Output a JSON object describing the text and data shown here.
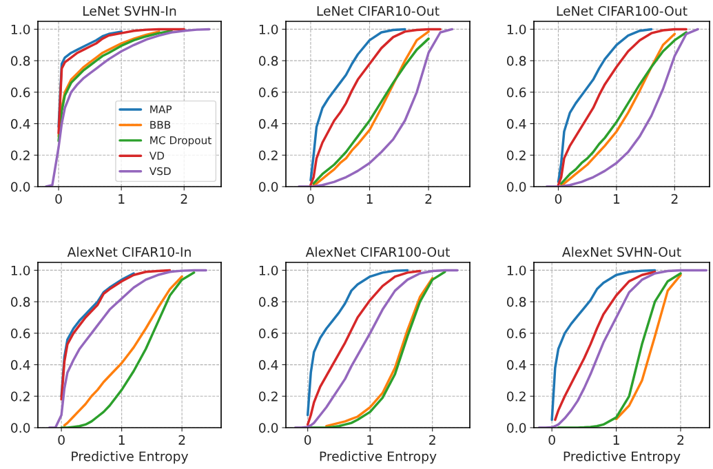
{
  "chart_data": [
    {
      "type": "line",
      "title": "LeNet SVHN-In",
      "x": [
        -0.2,
        -0.1,
        0,
        0.05,
        0.1,
        0.2,
        0.3,
        0.4,
        0.5,
        0.6,
        0.7,
        0.8,
        1.0,
        1.2,
        1.4,
        1.6,
        1.8,
        2.0,
        2.2,
        2.4
      ],
      "xlim": [
        -0.33,
        2.59
      ],
      "xticks": [
        0,
        1,
        2
      ],
      "ylim": [
        0,
        1.05
      ],
      "yticks": [
        {
          "value": 0,
          "label": "0.0"
        },
        {
          "value": 0.2,
          "label": "0.2"
        },
        {
          "value": 0.4,
          "label": "0.4"
        },
        {
          "value": 0.6,
          "label": "0.6"
        },
        {
          "value": 0.8,
          "label": "0.8"
        },
        {
          "value": 1,
          "label": "1.0"
        }
      ],
      "grid": true,
      "legend": "lower right",
      "line_style": "solid",
      "marker": "none",
      "series": [
        {
          "name": "MAP",
          "color": "#1f77b4",
          "values": [
            null,
            null,
            0.38,
            0.78,
            0.82,
            0.85,
            0.87,
            0.89,
            0.91,
            0.93,
            0.955,
            0.97,
            0.985,
            null,
            null,
            null,
            null,
            null,
            null,
            null
          ]
        },
        {
          "name": "BBB",
          "color": "#ff7f0e",
          "values": [
            null,
            null,
            0.32,
            0.5,
            0.6,
            0.68,
            0.72,
            0.76,
            0.79,
            0.82,
            0.85,
            0.87,
            0.91,
            0.94,
            0.965,
            0.985,
            null,
            null,
            null,
            null
          ]
        },
        {
          "name": "MC Dropout",
          "color": "#2ca02c",
          "values": [
            null,
            null,
            0.29,
            0.48,
            0.58,
            0.66,
            0.7,
            0.74,
            0.77,
            0.8,
            0.83,
            0.85,
            0.895,
            0.93,
            0.955,
            0.975,
            0.99,
            null,
            null,
            null
          ]
        },
        {
          "name": "VD",
          "color": "#d62728",
          "values": [
            null,
            null,
            0.34,
            0.75,
            0.79,
            0.82,
            0.85,
            0.87,
            0.89,
            0.91,
            0.94,
            0.96,
            0.975,
            0.99,
            0.997,
            1,
            1,
            1,
            null,
            null
          ]
        },
        {
          "name": "VSD",
          "color": "#9467bd",
          "values": [
            0,
            0.01,
            0.25,
            0.4,
            0.5,
            0.6,
            0.65,
            0.69,
            0.72,
            0.75,
            0.78,
            0.81,
            0.86,
            0.9,
            0.935,
            0.96,
            0.98,
            0.99,
            0.997,
            1
          ]
        }
      ]
    },
    {
      "type": "line",
      "title": "LeNet CIFAR10-Out",
      "x": [
        -0.2,
        -0.1,
        0,
        0.05,
        0.1,
        0.2,
        0.3,
        0.4,
        0.5,
        0.6,
        0.7,
        0.8,
        1.0,
        1.2,
        1.4,
        1.6,
        1.8,
        2.0,
        2.2,
        2.4
      ],
      "xlim": [
        -0.42,
        2.7
      ],
      "xticks": [
        0,
        1,
        2
      ],
      "ylim": [
        0,
        1.05
      ],
      "yticks": [
        {
          "value": 0,
          "label": "0.0"
        },
        {
          "value": 0.2,
          "label": "0.2"
        },
        {
          "value": 0.4,
          "label": "0.4"
        },
        {
          "value": 0.6,
          "label": "0.6"
        },
        {
          "value": 0.8,
          "label": "0.8"
        },
        {
          "value": 1,
          "label": "1.0"
        }
      ],
      "grid": true,
      "line_style": "solid",
      "marker": "none",
      "series": [
        {
          "color": "#1f77b4",
          "values": [
            null,
            null,
            0.04,
            0.2,
            0.38,
            0.5,
            0.56,
            0.61,
            0.66,
            0.71,
            0.78,
            0.84,
            0.93,
            0.98,
            0.995,
            1,
            null,
            null,
            null,
            null
          ]
        },
        {
          "color": "#ff7f0e",
          "values": [
            null,
            null,
            null,
            0.01,
            0.02,
            0.05,
            0.08,
            0.11,
            0.15,
            0.18,
            0.23,
            0.27,
            0.36,
            0.5,
            0.65,
            0.8,
            0.93,
            0.985,
            null,
            null
          ]
        },
        {
          "color": "#2ca02c",
          "values": [
            null,
            null,
            null,
            0.02,
            0.04,
            0.08,
            0.11,
            0.14,
            0.18,
            0.22,
            0.27,
            0.32,
            0.42,
            0.54,
            0.66,
            0.77,
            0.87,
            0.94,
            null,
            null
          ]
        },
        {
          "color": "#d62728",
          "values": [
            null,
            null,
            0.01,
            0.06,
            0.18,
            0.28,
            0.35,
            0.42,
            0.47,
            0.53,
            0.61,
            0.68,
            0.78,
            0.88,
            0.95,
            0.985,
            0.995,
            1,
            1,
            null
          ]
        },
        {
          "color": "#9467bd",
          "values": [
            0,
            0,
            0,
            0,
            0.005,
            0.01,
            0.02,
            0.03,
            0.045,
            0.06,
            0.08,
            0.1,
            0.15,
            0.22,
            0.3,
            0.42,
            0.6,
            0.85,
            0.98,
            1
          ]
        }
      ]
    },
    {
      "type": "line",
      "title": "LeNet CIFAR100-Out",
      "x": [
        -0.2,
        -0.1,
        0,
        0.05,
        0.1,
        0.2,
        0.3,
        0.4,
        0.5,
        0.6,
        0.7,
        0.8,
        1.0,
        1.2,
        1.4,
        1.6,
        1.8,
        2.0,
        2.2,
        2.4
      ],
      "xlim": [
        -0.42,
        2.6
      ],
      "xticks": [
        0,
        1,
        2
      ],
      "ylim": [
        0,
        1.05
      ],
      "yticks": [
        {
          "value": 0,
          "label": "0.0"
        },
        {
          "value": 0.2,
          "label": "0.2"
        },
        {
          "value": 0.4,
          "label": "0.4"
        },
        {
          "value": 0.6,
          "label": "0.6"
        },
        {
          "value": 0.8,
          "label": "0.8"
        },
        {
          "value": 1,
          "label": "1.0"
        }
      ],
      "grid": true,
      "line_style": "solid",
      "marker": "none",
      "series": [
        {
          "color": "#1f77b4",
          "values": [
            null,
            null,
            0.03,
            0.15,
            0.35,
            0.47,
            0.53,
            0.58,
            0.63,
            0.68,
            0.75,
            0.81,
            0.9,
            0.96,
            0.99,
            1,
            null,
            null,
            null,
            null
          ]
        },
        {
          "color": "#ff7f0e",
          "values": [
            null,
            null,
            null,
            0.01,
            0.02,
            0.05,
            0.08,
            0.11,
            0.14,
            0.18,
            0.22,
            0.26,
            0.35,
            0.47,
            0.61,
            0.76,
            0.9,
            0.97,
            null,
            null
          ]
        },
        {
          "color": "#2ca02c",
          "values": [
            null,
            null,
            null,
            0.02,
            0.04,
            0.08,
            0.11,
            0.15,
            0.18,
            0.22,
            0.27,
            0.31,
            0.41,
            0.53,
            0.65,
            0.76,
            0.86,
            0.93,
            0.98,
            null
          ]
        },
        {
          "color": "#d62728",
          "values": [
            null,
            null,
            0.01,
            0.06,
            0.18,
            0.26,
            0.32,
            0.38,
            0.44,
            0.5,
            0.58,
            0.65,
            0.76,
            0.86,
            0.93,
            0.975,
            0.993,
            1,
            1,
            null
          ]
        },
        {
          "color": "#9467bd",
          "values": [
            0,
            0,
            0,
            0,
            0.005,
            0.01,
            0.02,
            0.03,
            0.045,
            0.06,
            0.08,
            0.1,
            0.15,
            0.22,
            0.32,
            0.45,
            0.62,
            0.83,
            0.97,
            1
          ]
        }
      ]
    },
    {
      "type": "line",
      "title": "AlexNet CIFAR10-In",
      "xlabel": "Predictive Entropy",
      "x": [
        -0.2,
        -0.1,
        0,
        0.05,
        0.1,
        0.2,
        0.3,
        0.4,
        0.5,
        0.6,
        0.7,
        0.8,
        1.0,
        1.2,
        1.4,
        1.6,
        1.8,
        2.0,
        2.2,
        2.4
      ],
      "xlim": [
        -0.39,
        2.65
      ],
      "xticks": [
        0,
        1,
        2
      ],
      "ylim": [
        0,
        1.05
      ],
      "yticks": [
        {
          "value": 0,
          "label": "0.0"
        },
        {
          "value": 0.2,
          "label": "0.2"
        },
        {
          "value": 0.4,
          "label": "0.4"
        },
        {
          "value": 0.6,
          "label": "0.6"
        },
        {
          "value": 0.8,
          "label": "0.8"
        },
        {
          "value": 1,
          "label": "1.0"
        }
      ],
      "grid": true,
      "line_style": "solid",
      "marker": "none",
      "series": [
        {
          "color": "#1f77b4",
          "values": [
            null,
            null,
            0.2,
            0.45,
            0.56,
            0.63,
            0.68,
            0.72,
            0.76,
            0.8,
            0.86,
            0.89,
            0.94,
            0.98,
            null,
            null,
            null,
            null,
            null,
            null
          ]
        },
        {
          "color": "#ff7f0e",
          "values": [
            null,
            null,
            null,
            0.015,
            0.03,
            0.07,
            0.11,
            0.15,
            0.2,
            0.24,
            0.29,
            0.33,
            0.41,
            0.51,
            0.63,
            0.76,
            0.88,
            0.96,
            null,
            null
          ]
        },
        {
          "color": "#2ca02c",
          "values": [
            null,
            null,
            0,
            0,
            0,
            0.005,
            0.01,
            0.02,
            0.04,
            0.07,
            0.1,
            0.14,
            0.24,
            0.36,
            0.5,
            0.67,
            0.84,
            0.94,
            0.985,
            null
          ]
        },
        {
          "color": "#d62728",
          "values": [
            null,
            null,
            0.18,
            0.42,
            0.53,
            0.6,
            0.65,
            0.7,
            0.74,
            0.78,
            0.85,
            0.88,
            0.93,
            0.97,
            0.99,
            0.995,
            1,
            null,
            null,
            null
          ]
        },
        {
          "color": "#9467bd",
          "values": [
            0,
            0,
            0.08,
            0.25,
            0.35,
            0.43,
            0.5,
            0.55,
            0.6,
            0.65,
            0.7,
            0.75,
            0.82,
            0.89,
            0.94,
            0.97,
            0.99,
            0.997,
            1,
            1
          ]
        }
      ]
    },
    {
      "type": "line",
      "title": "AlexNet CIFAR100-Out",
      "xlabel": "Predictive Entropy",
      "x": [
        -0.2,
        -0.1,
        0,
        0.05,
        0.1,
        0.2,
        0.3,
        0.4,
        0.5,
        0.6,
        0.7,
        0.8,
        1.0,
        1.2,
        1.4,
        1.6,
        1.8,
        2.0,
        2.2,
        2.4
      ],
      "xlim": [
        -0.35,
        2.6
      ],
      "xticks": [
        0,
        1,
        2
      ],
      "ylim": [
        0,
        1.05
      ],
      "yticks": [
        {
          "value": 0,
          "label": "0.0"
        },
        {
          "value": 0.2,
          "label": "0.2"
        },
        {
          "value": 0.4,
          "label": "0.4"
        },
        {
          "value": 0.6,
          "label": "0.6"
        },
        {
          "value": 0.8,
          "label": "0.8"
        },
        {
          "value": 1,
          "label": "1.0"
        }
      ],
      "grid": true,
      "line_style": "solid",
      "marker": "none",
      "series": [
        {
          "color": "#1f77b4",
          "values": [
            null,
            null,
            0.08,
            0.35,
            0.48,
            0.57,
            0.63,
            0.68,
            0.73,
            0.79,
            0.87,
            0.91,
            0.96,
            0.985,
            0.997,
            1,
            null,
            null,
            null,
            null
          ]
        },
        {
          "color": "#ff7f0e",
          "values": [
            null,
            null,
            null,
            null,
            null,
            null,
            0.01,
            0.02,
            0.03,
            0.04,
            0.055,
            0.07,
            0.13,
            0.22,
            0.38,
            0.62,
            0.83,
            0.95,
            null,
            null
          ]
        },
        {
          "color": "#2ca02c",
          "values": [
            null,
            null,
            null,
            0,
            0,
            0,
            0,
            0.005,
            0.01,
            0.02,
            0.03,
            0.05,
            0.1,
            0.19,
            0.34,
            0.58,
            0.8,
            0.94,
            0.99,
            null
          ]
        },
        {
          "color": "#d62728",
          "values": [
            null,
            null,
            0.02,
            0.08,
            0.16,
            0.26,
            0.33,
            0.4,
            0.47,
            0.54,
            0.62,
            0.7,
            0.81,
            0.9,
            0.96,
            0.985,
            0.995,
            null,
            null,
            null
          ]
        },
        {
          "color": "#9467bd",
          "values": [
            0,
            0,
            0.005,
            0.015,
            0.03,
            0.08,
            0.13,
            0.19,
            0.25,
            0.31,
            0.39,
            0.46,
            0.6,
            0.75,
            0.87,
            0.94,
            0.98,
            0.995,
            1,
            1
          ]
        }
      ]
    },
    {
      "type": "line",
      "title": "AlexNet SVHN-Out",
      "xlabel": "Predictive Entropy",
      "x": [
        -0.2,
        -0.1,
        0,
        0.05,
        0.1,
        0.2,
        0.3,
        0.4,
        0.5,
        0.6,
        0.7,
        0.8,
        1.0,
        1.2,
        1.4,
        1.6,
        1.8,
        2.0,
        2.2,
        2.4
      ],
      "xlim": [
        -0.28,
        2.45
      ],
      "xticks": [
        0,
        1,
        2
      ],
      "ylim": [
        0,
        1.05
      ],
      "yticks": [
        {
          "value": 0,
          "label": "0.0"
        },
        {
          "value": 0.2,
          "label": "0.2"
        },
        {
          "value": 0.4,
          "label": "0.4"
        },
        {
          "value": 0.6,
          "label": "0.6"
        },
        {
          "value": 0.8,
          "label": "0.8"
        },
        {
          "value": 1,
          "label": "1.0"
        }
      ],
      "grid": true,
      "line_style": "solid",
      "marker": "none",
      "series": [
        {
          "color": "#1f77b4",
          "values": [
            null,
            null,
            0.05,
            0.38,
            0.5,
            0.6,
            0.66,
            0.71,
            0.76,
            0.81,
            0.88,
            0.92,
            0.97,
            0.99,
            0.997,
            1,
            null,
            null,
            null,
            null
          ]
        },
        {
          "color": "#ff7f0e",
          "values": [
            null,
            null,
            null,
            null,
            null,
            null,
            null,
            null,
            null,
            null,
            null,
            null,
            0.055,
            0.14,
            0.3,
            0.58,
            0.87,
            0.97,
            null,
            null
          ]
        },
        {
          "color": "#2ca02c",
          "values": [
            null,
            null,
            null,
            null,
            0,
            0,
            0,
            0,
            0.002,
            0.005,
            0.01,
            0.02,
            0.065,
            0.2,
            0.53,
            0.8,
            0.93,
            0.98,
            null,
            null
          ]
        },
        {
          "color": "#d62728",
          "values": [
            null,
            null,
            null,
            0.05,
            0.11,
            0.2,
            0.28,
            0.36,
            0.44,
            0.53,
            0.63,
            0.72,
            0.84,
            0.93,
            0.97,
            0.99,
            null,
            null,
            null,
            null
          ]
        },
        {
          "color": "#9467bd",
          "values": [
            0,
            0,
            0.002,
            0.01,
            0.02,
            0.06,
            0.11,
            0.17,
            0.25,
            0.34,
            0.44,
            0.54,
            0.7,
            0.86,
            0.94,
            0.98,
            0.995,
            1,
            1,
            1
          ]
        }
      ]
    }
  ]
}
